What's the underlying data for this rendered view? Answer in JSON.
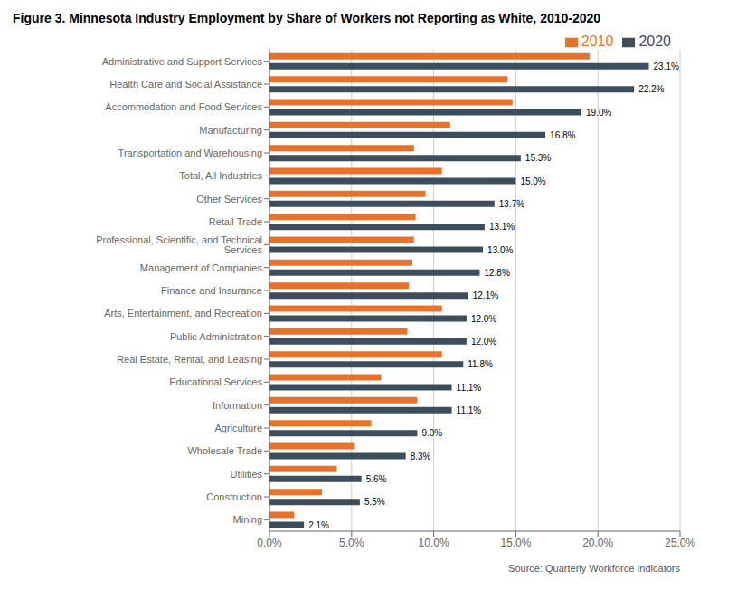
{
  "chart_data": {
    "type": "bar",
    "orientation": "horizontal",
    "title": "Figure 3. Minnesota Industry Employment by Share of Workers not Reporting as White, 2010-2020",
    "categories": [
      "Administrative and Support Services",
      "Health Care and Social Assistance",
      "Accommodation and Food Services",
      "Manufacturing",
      "Transportation and Warehousing",
      "Total, All Industries",
      "Other Services",
      "Retail Trade",
      "Professional, Scientific, and Technical Services",
      "Management of Companies",
      "Finance and Insurance",
      "Arts, Entertainment, and Recreation",
      "Public Administration",
      "Real Estate, Rental, and Leasing",
      "Educational Services",
      "Information",
      "Agriculture",
      "Wholesale Trade",
      "Utilities",
      "Construction",
      "Mining"
    ],
    "series": [
      {
        "name": "2010",
        "color": "#E8722A",
        "values": [
          19.5,
          14.5,
          14.8,
          11.0,
          8.8,
          10.5,
          9.5,
          8.9,
          8.8,
          8.7,
          8.5,
          10.5,
          8.4,
          10.5,
          6.8,
          9.0,
          6.2,
          5.2,
          4.1,
          3.2,
          1.5
        ]
      },
      {
        "name": "2020",
        "color": "#3D4D5C",
        "values": [
          23.1,
          22.2,
          19.0,
          16.8,
          15.3,
          15.0,
          13.7,
          13.1,
          13.0,
          12.8,
          12.1,
          12.0,
          12.0,
          11.8,
          11.1,
          11.1,
          9.0,
          8.3,
          5.6,
          5.5,
          2.1
        ],
        "data_labels": true,
        "value_labels": [
          "23.1%",
          "22.2%",
          "19.0%",
          "16.8%",
          "15.3%",
          "15.0%",
          "13.7%",
          "13.1%",
          "13.0%",
          "12.8%",
          "12.1%",
          "12.0%",
          "12.0%",
          "11.8%",
          "11.1%",
          "11.1%",
          "9.0%",
          "8.3%",
          "5.6%",
          "5.5%",
          "2.1%"
        ]
      }
    ],
    "xlim": [
      0,
      25
    ],
    "xticks": [
      {
        "value": 0,
        "label": "0.0%"
      },
      {
        "value": 5,
        "label": "5.0%"
      },
      {
        "value": 10,
        "label": "10.0%"
      },
      {
        "value": 15,
        "label": "15.0%"
      },
      {
        "value": 20,
        "label": "20.0%"
      },
      {
        "value": 25,
        "label": "25.0%"
      }
    ],
    "grid": true,
    "legend": "upper right",
    "annotations": [
      "Source: Quarterly Workforce Indicators"
    ]
  }
}
